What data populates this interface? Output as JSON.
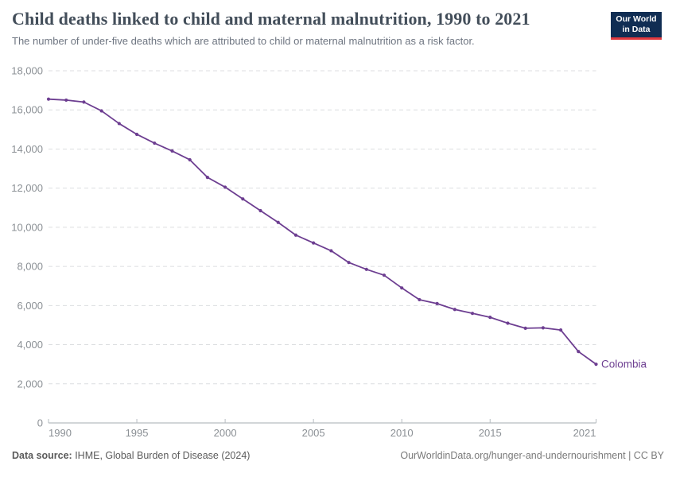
{
  "header": {
    "title": "Child deaths linked to child and maternal malnutrition, 1990 to 2021",
    "subtitle": "The number of under-five deaths which are attributed to child or maternal malnutrition as a risk factor.",
    "logo": {
      "line1": "Our World",
      "line2": "in Data"
    }
  },
  "footer": {
    "data_source_label": "Data source:",
    "data_source_value": " IHME, Global Burden of Disease (2024)",
    "attribution": "OurWorldinData.org/hunger-and-undernourishment | CC BY"
  },
  "colors": {
    "series": "#6d3e91",
    "end_label": "#6d3e91",
    "gridline": "#dcdee0",
    "axis_line": "#a6acb1",
    "tick_mark": "#b6bcc1",
    "tick_label": "#8b9095",
    "logo_bg": "#102d53",
    "logo_red": "#e0393e",
    "title": "#434e5a",
    "subtitle": "#6e7581"
  },
  "chart_data": {
    "type": "line",
    "title": "Child deaths linked to child and maternal malnutrition, 1990 to 2021",
    "xlabel": "",
    "ylabel": "",
    "x_range": [
      1990,
      2021
    ],
    "y_range": [
      0,
      18000
    ],
    "x_ticks": [
      1990,
      1995,
      2000,
      2005,
      2010,
      2015,
      2021
    ],
    "y_ticks": [
      0,
      2000,
      4000,
      6000,
      8000,
      10000,
      12000,
      14000,
      16000,
      18000
    ],
    "grid": "dashed-horizontal",
    "legend_position": "end-of-line-label",
    "series": [
      {
        "name": "Colombia",
        "color": "#6d3e91",
        "x": [
          1990,
          1991,
          1992,
          1993,
          1994,
          1995,
          1996,
          1997,
          1998,
          1999,
          2000,
          2001,
          2002,
          2003,
          2004,
          2005,
          2006,
          2007,
          2008,
          2009,
          2010,
          2011,
          2012,
          2013,
          2014,
          2015,
          2016,
          2017,
          2018,
          2019,
          2020,
          2021
        ],
        "values": [
          16550,
          16500,
          16400,
          15950,
          15300,
          14750,
          14300,
          13900,
          13450,
          12550,
          12050,
          11450,
          10850,
          10250,
          9600,
          9200,
          8800,
          8200,
          7850,
          7550,
          6900,
          6300,
          6100,
          5800,
          5600,
          5400,
          5100,
          4840,
          4860,
          4750,
          3650,
          3000
        ]
      }
    ]
  }
}
